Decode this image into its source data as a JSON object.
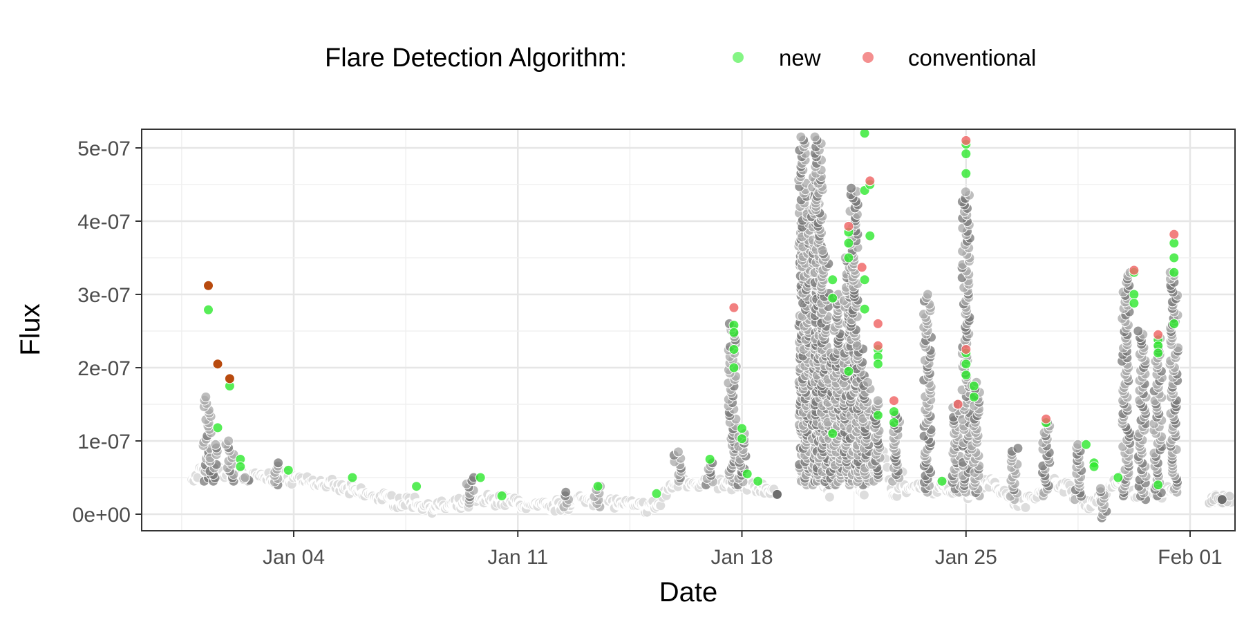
{
  "chart_data": {
    "type": "scatter",
    "title": "",
    "xlabel": "Date",
    "ylabel": "Flux",
    "legend": {
      "title": "Flare Detection Algorithm:",
      "position": "top",
      "entries": [
        {
          "label": "new",
          "color": "#33ee33"
        },
        {
          "label": "conventional",
          "color": "#f06060"
        }
      ]
    },
    "x_ticks": [
      "Jan 04",
      "Jan 11",
      "Jan 18",
      "Jan 25",
      "Feb 01"
    ],
    "y_ticks": [
      "0e+00",
      "1e-07",
      "2e-07",
      "3e-07",
      "4e-07",
      "5e-07"
    ],
    "xlim": [
      "2024-01-31T-28",
      "2024-02-01T+1"
    ],
    "x_range_days": {
      "start": "Dec 30",
      "end": "Feb 02"
    },
    "ylim": [
      -2.5e-08,
      5.25e-07
    ],
    "grid": true,
    "colors": {
      "background_points": "#b5b5b5",
      "background_points_dark": "#777777",
      "new": "#2de82d",
      "conventional": "#f06a6a",
      "both": "#b84a0e"
    },
    "series": [
      {
        "name": "new",
        "points": [
          [
            "Jan 01 08:00",
            2.79e-07
          ],
          [
            "Jan 01 15:00",
            1.18e-07
          ],
          [
            "Jan 02 00:00",
            1.75e-07
          ],
          [
            "Jan 02 08:00",
            7.5e-08
          ],
          [
            "Jan 02 08:00",
            6.5e-08
          ],
          [
            "Jan 03 20:00",
            6e-08
          ],
          [
            "Jan 05 20:00",
            5e-08
          ],
          [
            "Jan 07 20:00",
            3.8e-08
          ],
          [
            "Jan 09 20:00",
            5e-08
          ],
          [
            "Jan 10 12:00",
            2.5e-08
          ],
          [
            "Jan 13 12:00",
            3.8e-08
          ],
          [
            "Jan 15 08:00",
            2.8e-08
          ],
          [
            "Jan 17 00:00",
            7.5e-08
          ],
          [
            "Jan 17 18:00",
            2.58e-07
          ],
          [
            "Jan 17 18:00",
            2.48e-07
          ],
          [
            "Jan 17 18:00",
            2.25e-07
          ],
          [
            "Jan 17 18:00",
            2e-07
          ],
          [
            "Jan 18 00:00",
            1.17e-07
          ],
          [
            "Jan 18 00:00",
            1.03e-07
          ],
          [
            "Jan 18 04:00",
            5.5e-08
          ],
          [
            "Jan 18 12:00",
            4.5e-08
          ],
          [
            "Jan 20 20:00",
            3.2e-07
          ],
          [
            "Jan 20 20:00",
            2.95e-07
          ],
          [
            "Jan 20 20:00",
            1.1e-07
          ],
          [
            "Jan 21 08:00",
            3.85e-07
          ],
          [
            "Jan 21 08:00",
            3.7e-07
          ],
          [
            "Jan 21 08:00",
            3.5e-07
          ],
          [
            "Jan 21 08:00",
            1.95e-07
          ],
          [
            "Jan 21 20:00",
            5.2e-07
          ],
          [
            "Jan 21 20:00",
            4.42e-07
          ],
          [
            "Jan 21 20:00",
            3.2e-07
          ],
          [
            "Jan 21 20:00",
            2.8e-07
          ],
          [
            "Jan 22 00:00",
            4.5e-07
          ],
          [
            "Jan 22 00:00",
            3.8e-07
          ],
          [
            "Jan 22 06:00",
            2.25e-07
          ],
          [
            "Jan 22 06:00",
            2.15e-07
          ],
          [
            "Jan 22 06:00",
            2.05e-07
          ],
          [
            "Jan 22 06:00",
            1.35e-07
          ],
          [
            "Jan 22 18:00",
            1.4e-07
          ],
          [
            "Jan 22 18:00",
            1.25e-07
          ],
          [
            "Jan 24 06:00",
            4.5e-08
          ],
          [
            "Jan 25 00:00",
            5.05e-07
          ],
          [
            "Jan 25 00:00",
            4.92e-07
          ],
          [
            "Jan 25 00:00",
            4.65e-07
          ],
          [
            "Jan 25 00:00",
            2.2e-07
          ],
          [
            "Jan 25 00:00",
            2.05e-07
          ],
          [
            "Jan 25 00:00",
            1.9e-07
          ],
          [
            "Jan 25 06:00",
            1.75e-07
          ],
          [
            "Jan 25 06:00",
            1.6e-07
          ],
          [
            "Jan 27 12:00",
            1.25e-07
          ],
          [
            "Jan 28 18:00",
            9.5e-08
          ],
          [
            "Jan 29 00:00",
            7e-08
          ],
          [
            "Jan 29 00:00",
            6.5e-08
          ],
          [
            "Jan 29 18:00",
            5e-08
          ],
          [
            "Jan 30 06:00",
            3.3e-07
          ],
          [
            "Jan 30 06:00",
            3e-07
          ],
          [
            "Jan 30 06:00",
            2.88e-07
          ],
          [
            "Jan 31 00:00",
            2.38e-07
          ],
          [
            "Jan 31 00:00",
            2.3e-07
          ],
          [
            "Jan 31 00:00",
            2.2e-07
          ],
          [
            "Jan 31 00:00",
            4e-08
          ],
          [
            "Jan 31 12:00",
            3.7e-07
          ],
          [
            "Jan 31 12:00",
            3.5e-07
          ],
          [
            "Jan 31 12:00",
            3.3e-07
          ],
          [
            "Jan 31 12:00",
            2.6e-07
          ]
        ]
      },
      {
        "name": "conventional",
        "points": [
          [
            "Jan 17 18:00",
            2.82e-07
          ],
          [
            "Jan 21 08:00",
            3.93e-07
          ],
          [
            "Jan 21 18:00",
            3.37e-07
          ],
          [
            "Jan 22 00:00",
            4.55e-07
          ],
          [
            "Jan 22 06:00",
            2.6e-07
          ],
          [
            "Jan 22 06:00",
            2.3e-07
          ],
          [
            "Jan 22 18:00",
            1.55e-07
          ],
          [
            "Jan 25 00:00",
            5.1e-07
          ],
          [
            "Jan 25 00:00",
            2.25e-07
          ],
          [
            "Jan 24 18:00",
            1.5e-07
          ],
          [
            "Jan 27 12:00",
            1.3e-07
          ],
          [
            "Jan 31 00:00",
            2.45e-07
          ],
          [
            "Jan 30 06:00",
            3.33e-07
          ],
          [
            "Jan 31 12:00",
            3.82e-07
          ]
        ]
      },
      {
        "name": "",
        "points": [
          [
            "Jan 01 08:00",
            3.12e-07
          ],
          [
            "Jan 01 15:00",
            2.05e-07
          ],
          [
            "Jan 02 00:00",
            1.85e-07
          ]
        ]
      }
    ],
    "background_profile_note": ""
  }
}
